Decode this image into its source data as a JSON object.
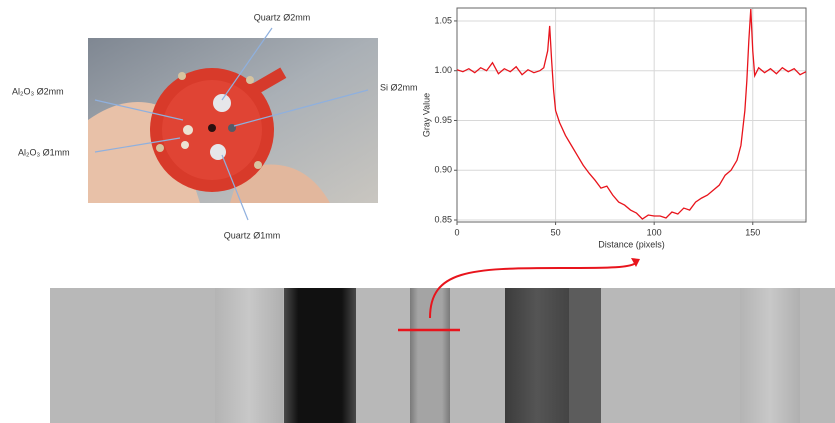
{
  "figure": {
    "photo_labels": [
      "Quartz Ø2mm",
      "Al₂O₃ Ø2mm",
      "Si Ø2mm",
      "Al₂O₃ Ø1mm",
      "Quartz Ø1mm"
    ]
  },
  "chart_data": {
    "type": "line",
    "xlabel": "Distance (pixels)",
    "ylabel": "Gray Value",
    "x": [
      0,
      3,
      6,
      9,
      12,
      15,
      18,
      21,
      24,
      27,
      30,
      33,
      36,
      39,
      42,
      44,
      46,
      47,
      48,
      49,
      50,
      52,
      55,
      58,
      61,
      64,
      67,
      70,
      73,
      76,
      79,
      82,
      85,
      88,
      91,
      94,
      97,
      100,
      103,
      106,
      109,
      112,
      115,
      118,
      121,
      124,
      127,
      130,
      133,
      136,
      139,
      142,
      144,
      146,
      147,
      148,
      149,
      150,
      151,
      153,
      156,
      159,
      162,
      165,
      168,
      171,
      174,
      177
    ],
    "series": [
      {
        "name": "Gray Value",
        "color": "#e8141c",
        "values": [
          1.001,
          0.999,
          1.002,
          0.998,
          1.003,
          1.0,
          1.008,
          0.997,
          1.002,
          0.999,
          1.004,
          0.996,
          1.001,
          0.998,
          1.0,
          1.003,
          1.02,
          1.045,
          1.01,
          0.98,
          0.96,
          0.948,
          0.935,
          0.925,
          0.915,
          0.905,
          0.897,
          0.89,
          0.882,
          0.884,
          0.875,
          0.868,
          0.865,
          0.86,
          0.857,
          0.851,
          0.855,
          0.854,
          0.854,
          0.852,
          0.858,
          0.856,
          0.862,
          0.86,
          0.868,
          0.872,
          0.875,
          0.88,
          0.885,
          0.895,
          0.9,
          0.91,
          0.925,
          0.96,
          0.99,
          1.03,
          1.062,
          1.02,
          0.995,
          1.003,
          0.998,
          1.002,
          0.997,
          1.003,
          0.999,
          1.002,
          0.996,
          0.999
        ]
      }
    ],
    "xlim": [
      0,
      177
    ],
    "ylim": [
      0.848,
      1.063
    ],
    "xticks": [
      0,
      50,
      100,
      150
    ],
    "yticks": [
      0.85,
      {
        "value": 0.9,
        "label": "0.90"
      },
      0.95,
      {
        "value": 1.0,
        "label": "1.00"
      },
      1.05
    ],
    "grid": true
  }
}
